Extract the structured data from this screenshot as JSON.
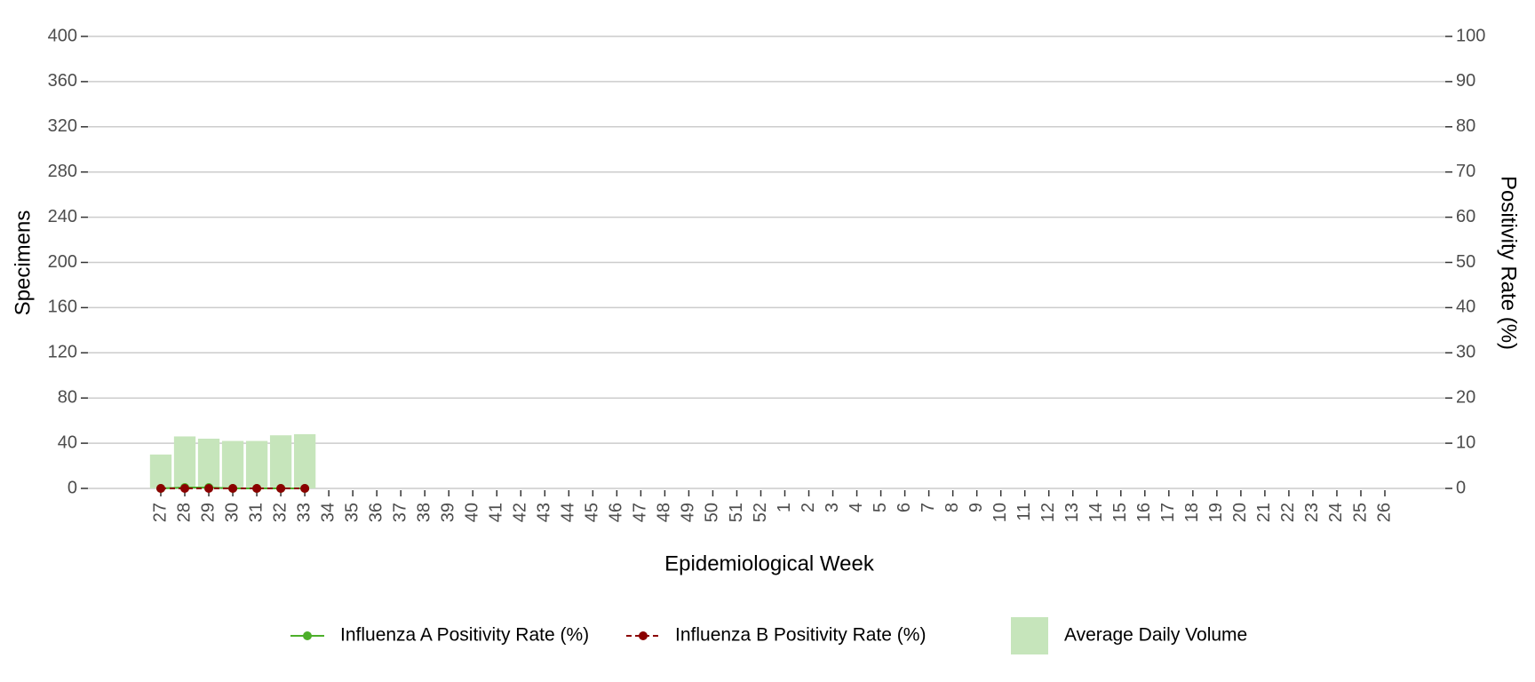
{
  "chart_data": {
    "type": "bar",
    "xlabel": "Epidemiological Week",
    "ylabel": "Specimens",
    "y2label": "Positivity Rate (%)",
    "categories": [
      "27",
      "28",
      "29",
      "30",
      "31",
      "32",
      "33",
      "34",
      "35",
      "36",
      "37",
      "38",
      "39",
      "40",
      "41",
      "42",
      "43",
      "44",
      "45",
      "46",
      "47",
      "48",
      "49",
      "50",
      "51",
      "52",
      "1",
      "2",
      "3",
      "4",
      "5",
      "6",
      "7",
      "8",
      "9",
      "10",
      "11",
      "12",
      "13",
      "14",
      "15",
      "16",
      "17",
      "18",
      "19",
      "20",
      "21",
      "22",
      "23",
      "24",
      "25",
      "26"
    ],
    "series": [
      {
        "name": "Influenza A Positivity Rate (%)",
        "type": "line",
        "axis": "y2",
        "color": "#4daf2a",
        "dashed": false,
        "values": [
          0,
          0.2,
          0.2,
          0,
          0,
          0,
          0,
          null,
          null,
          null,
          null,
          null,
          null,
          null,
          null,
          null,
          null,
          null,
          null,
          null,
          null,
          null,
          null,
          null,
          null,
          null,
          null,
          null,
          null,
          null,
          null,
          null,
          null,
          null,
          null,
          null,
          null,
          null,
          null,
          null,
          null,
          null,
          null,
          null,
          null,
          null,
          null,
          null,
          null,
          null,
          null,
          null
        ]
      },
      {
        "name": "Influenza B Positivity Rate (%)",
        "type": "line",
        "axis": "y2",
        "color": "#8b0000",
        "dashed": true,
        "values": [
          0,
          0,
          0,
          0,
          0,
          0,
          0,
          null,
          null,
          null,
          null,
          null,
          null,
          null,
          null,
          null,
          null,
          null,
          null,
          null,
          null,
          null,
          null,
          null,
          null,
          null,
          null,
          null,
          null,
          null,
          null,
          null,
          null,
          null,
          null,
          null,
          null,
          null,
          null,
          null,
          null,
          null,
          null,
          null,
          null,
          null,
          null,
          null,
          null,
          null,
          null,
          null
        ]
      },
      {
        "name": "Average Daily Volume",
        "type": "bar",
        "axis": "y",
        "color": "#c6e5bb",
        "values": [
          30,
          46,
          44,
          42,
          42,
          47,
          48,
          null,
          null,
          null,
          null,
          null,
          null,
          null,
          null,
          null,
          null,
          null,
          null,
          null,
          null,
          null,
          null,
          null,
          null,
          null,
          null,
          null,
          null,
          null,
          null,
          null,
          null,
          null,
          null,
          null,
          null,
          null,
          null,
          null,
          null,
          null,
          null,
          null,
          null,
          null,
          null,
          null,
          null,
          null,
          null,
          null
        ]
      }
    ],
    "ylim": [
      0,
      400
    ],
    "yticks": [
      0,
      40,
      80,
      120,
      160,
      200,
      240,
      280,
      320,
      360,
      400
    ],
    "y2lim": [
      0,
      100
    ],
    "y2ticks": [
      0,
      10,
      20,
      30,
      40,
      50,
      60,
      70,
      80,
      90,
      100
    ],
    "grid": true,
    "legend": "bottom"
  }
}
